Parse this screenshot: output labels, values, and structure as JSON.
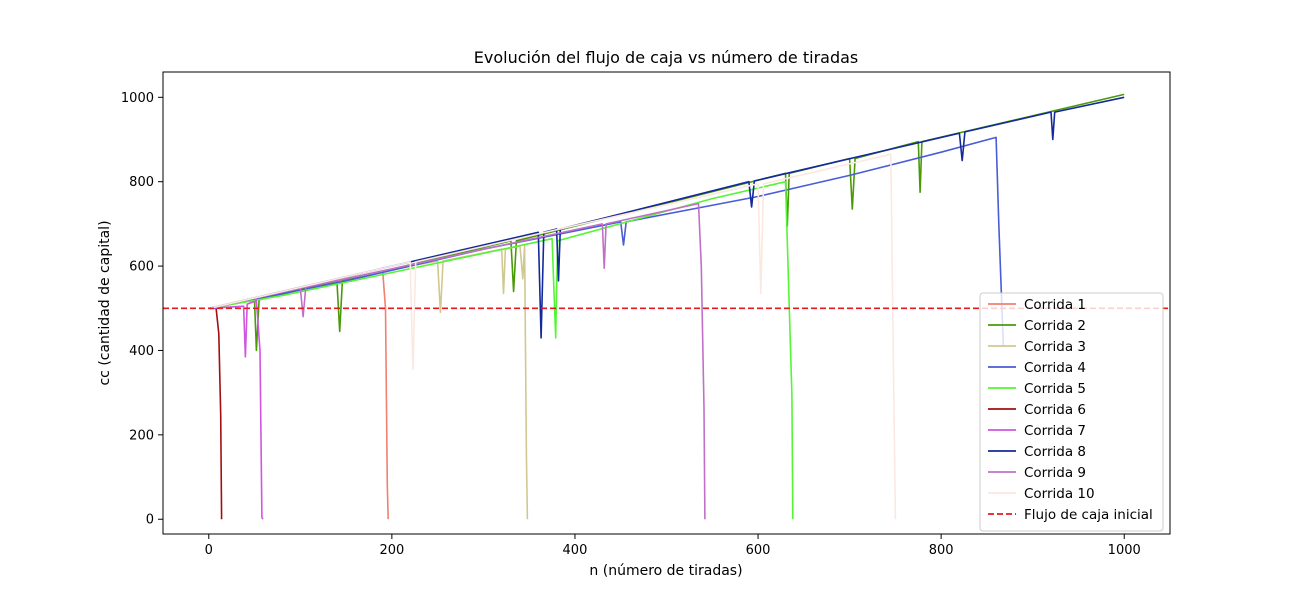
{
  "chart_data": {
    "type": "line",
    "title": "Evolución del flujo de caja vs número de tiradas",
    "xlabel": "n (número de tiradas)",
    "ylabel": "cc (cantidad de capital)",
    "xlim": [
      -50,
      1050
    ],
    "ylim": [
      -35,
      1060
    ],
    "xticks": [
      0,
      200,
      400,
      600,
      800,
      1000
    ],
    "yticks": [
      0,
      200,
      400,
      600,
      800,
      1000
    ],
    "grid": false,
    "legend_position": "lower-right",
    "series": [
      {
        "name": "Corrida 1",
        "color": "#f08070",
        "dash": "",
        "points": [
          [
            1,
            500
          ],
          [
            60,
            528
          ],
          [
            120,
            555
          ],
          [
            185,
            585
          ],
          [
            190,
            588
          ],
          [
            193,
            500
          ],
          [
            195,
            80
          ],
          [
            196,
            0
          ]
        ]
      },
      {
        "name": "Corrida 2",
        "color": "#4a9a08",
        "dash": "",
        "points": [
          [
            1,
            500
          ],
          [
            50,
            520
          ],
          [
            52,
            400
          ],
          [
            55,
            520
          ],
          [
            140,
            565
          ],
          [
            143,
            445
          ],
          [
            146,
            565
          ],
          [
            330,
            660
          ],
          [
            333,
            540
          ],
          [
            336,
            660
          ],
          [
            630,
            820
          ],
          [
            632,
            695
          ],
          [
            634,
            820
          ],
          [
            700,
            855
          ],
          [
            703,
            735
          ],
          [
            706,
            855
          ],
          [
            775,
            895
          ],
          [
            777,
            775
          ],
          [
            779,
            895
          ],
          [
            1000,
            1007
          ]
        ]
      },
      {
        "name": "Corrida 3",
        "color": "#d0c890",
        "dash": "",
        "points": [
          [
            1,
            500
          ],
          [
            100,
            550
          ],
          [
            250,
            612
          ],
          [
            253,
            490
          ],
          [
            256,
            612
          ],
          [
            320,
            640
          ],
          [
            322,
            535
          ],
          [
            324,
            640
          ],
          [
            340,
            648
          ],
          [
            343,
            570
          ],
          [
            345,
            648
          ],
          [
            347,
            152
          ],
          [
            348,
            0
          ]
        ]
      },
      {
        "name": "Corrida 4",
        "color": "#4a5cd6",
        "dash": "",
        "points": [
          [
            1,
            500
          ],
          [
            150,
            565
          ],
          [
            300,
            640
          ],
          [
            450,
            705
          ],
          [
            453,
            650
          ],
          [
            456,
            705
          ],
          [
            600,
            765
          ],
          [
            700,
            815
          ],
          [
            800,
            870
          ],
          [
            860,
            905
          ],
          [
            863,
            700
          ],
          [
            866,
            520
          ],
          [
            868,
            410
          ]
        ]
      },
      {
        "name": "Corrida 5",
        "color": "#55f535",
        "dash": "",
        "points": [
          [
            1,
            500
          ],
          [
            80,
            530
          ],
          [
            300,
            630
          ],
          [
            375,
            665
          ],
          [
            377,
            545
          ],
          [
            379,
            430
          ],
          [
            381,
            660
          ],
          [
            550,
            760
          ],
          [
            630,
            800
          ],
          [
            633,
            580
          ],
          [
            637,
            295
          ],
          [
            638,
            0
          ]
        ]
      },
      {
        "name": "Corrida 6",
        "color": "#a01010",
        "dash": "",
        "points": [
          [
            1,
            500
          ],
          [
            8,
            500
          ],
          [
            11,
            440
          ],
          [
            13,
            248
          ],
          [
            14,
            0
          ]
        ]
      },
      {
        "name": "Corrida 7",
        "color": "#d056e0",
        "dash": "",
        "points": [
          [
            1,
            500
          ],
          [
            38,
            505
          ],
          [
            40,
            385
          ],
          [
            42,
            510
          ],
          [
            52,
            518
          ],
          [
            56,
            400
          ],
          [
            58,
            5
          ],
          [
            59,
            0
          ]
        ]
      },
      {
        "name": "Corrida 8",
        "color": "#142a9a",
        "dash": "",
        "points": [
          [
            1,
            500
          ],
          [
            200,
            600
          ],
          [
            360,
            680
          ],
          [
            363,
            430
          ],
          [
            366,
            680
          ],
          [
            380,
            688
          ],
          [
            382,
            565
          ],
          [
            384,
            688
          ],
          [
            590,
            800
          ],
          [
            593,
            740
          ],
          [
            596,
            802
          ],
          [
            820,
            915
          ],
          [
            823,
            850
          ],
          [
            826,
            918
          ],
          [
            920,
            965
          ],
          [
            922,
            900
          ],
          [
            924,
            965
          ],
          [
            1000,
            1000
          ]
        ]
      },
      {
        "name": "Corrida 9",
        "color": "#c070c8",
        "dash": "",
        "points": [
          [
            1,
            500
          ],
          [
            100,
            548
          ],
          [
            103,
            480
          ],
          [
            106,
            550
          ],
          [
            430,
            700
          ],
          [
            432,
            595
          ],
          [
            434,
            700
          ],
          [
            535,
            748
          ],
          [
            538,
            600
          ],
          [
            541,
            262
          ],
          [
            542,
            0
          ]
        ]
      },
      {
        "name": "Corrida 10",
        "color": "#fbe8e0",
        "dash": "",
        "points": [
          [
            1,
            500
          ],
          [
            220,
            610
          ],
          [
            223,
            355
          ],
          [
            226,
            610
          ],
          [
            600,
            795
          ],
          [
            603,
            535
          ],
          [
            606,
            795
          ],
          [
            745,
            865
          ],
          [
            748,
            355
          ],
          [
            750,
            0
          ]
        ]
      }
    ],
    "hline": {
      "name": "Flujo de caja inicial",
      "y": 500,
      "color": "#e41a1c",
      "style": "dashed"
    }
  }
}
